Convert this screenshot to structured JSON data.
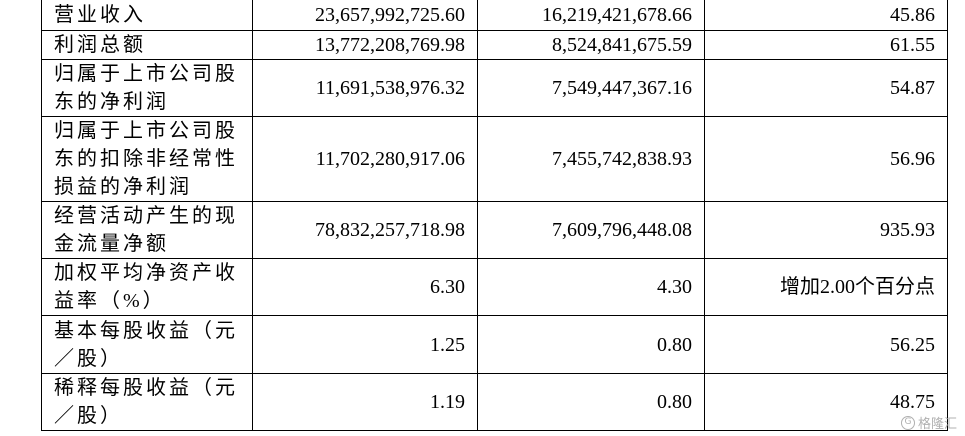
{
  "table": {
    "rows": [
      {
        "label": "营业收入",
        "current": "23,657,992,725.60",
        "previous": "16,219,421,678.66",
        "change": "45.86"
      },
      {
        "label": "利润总额",
        "current": "13,772,208,769.98",
        "previous": "8,524,841,675.59",
        "change": "61.55"
      },
      {
        "label": "归属于上市公司股东的净利润",
        "current": "11,691,538,976.32",
        "previous": "7,549,447,367.16",
        "change": "54.87"
      },
      {
        "label": "归属于上市公司股东的扣除非经常性损益的净利润",
        "current": "11,702,280,917.06",
        "previous": "7,455,742,838.93",
        "change": "56.96"
      },
      {
        "label": "经营活动产生的现金流量净额",
        "current": "78,832,257,718.98",
        "previous": "7,609,796,448.08",
        "change": "935.93"
      },
      {
        "label": "加权平均净资产收益率（%）",
        "current": "6.30",
        "previous": "4.30",
        "change": "增加2.00个百分点"
      },
      {
        "label": "基本每股收益（元／股）",
        "current": "1.25",
        "previous": "0.80",
        "change": "56.25"
      },
      {
        "label": "稀释每股收益（元／股）",
        "current": "1.19",
        "previous": "0.80",
        "change": "48.75"
      }
    ]
  },
  "watermark": {
    "logo": "G",
    "text": "格隆汇"
  }
}
